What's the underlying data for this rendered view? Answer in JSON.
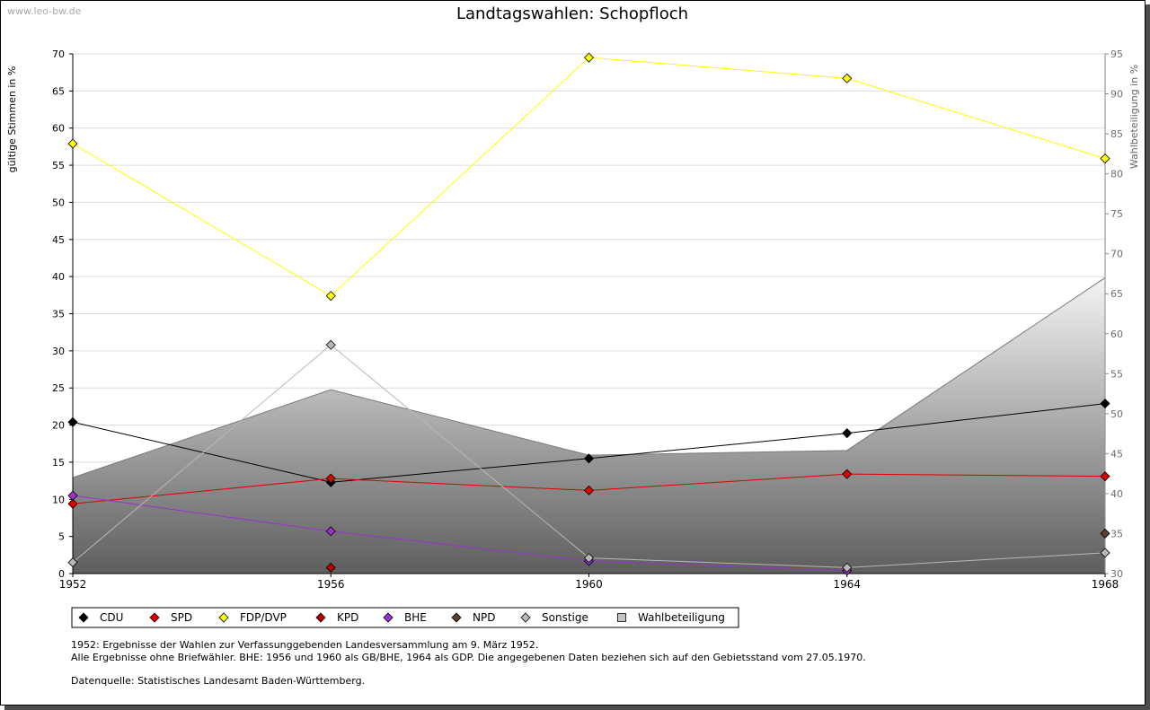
{
  "watermark": "www.leo-bw.de",
  "chart_data": {
    "type": "line",
    "title": "Landtagswahlen: Schopfloch",
    "ylabel": "gültige Stimmen in %",
    "y2label": "Wahlbeteiligung in %",
    "categories": [
      "1952",
      "1956",
      "1960",
      "1964",
      "1968"
    ],
    "ylim": [
      0,
      70
    ],
    "y2lim": [
      30,
      95
    ],
    "yticks": [
      0,
      5,
      10,
      15,
      20,
      25,
      30,
      35,
      40,
      45,
      50,
      55,
      60,
      65,
      70
    ],
    "y2ticks": [
      30,
      35,
      40,
      45,
      50,
      55,
      60,
      65,
      70,
      75,
      80,
      85,
      90,
      95
    ],
    "grid": true,
    "legend_position": "bottom-left",
    "marker": "diamond",
    "series": [
      {
        "name": "CDU",
        "color": "#000000",
        "series_type": "line",
        "axis": "left",
        "values": [
          20.4,
          12.3,
          15.5,
          18.9,
          22.9
        ]
      },
      {
        "name": "SPD",
        "color": "#e00000",
        "series_type": "line",
        "axis": "left",
        "values": [
          9.4,
          12.8,
          11.2,
          13.4,
          13.1
        ]
      },
      {
        "name": "FDP/DVP",
        "color": "#ffff00",
        "series_type": "line",
        "axis": "left",
        "values": [
          57.9,
          37.4,
          69.5,
          66.7,
          55.9
        ]
      },
      {
        "name": "KPD",
        "color": "#b40000",
        "series_type": "line",
        "axis": "left",
        "values": [
          null,
          0.8,
          null,
          null,
          null
        ]
      },
      {
        "name": "BHE",
        "color": "#9933cc",
        "series_type": "line",
        "axis": "left",
        "values": [
          10.5,
          5.7,
          1.7,
          0.4,
          null
        ]
      },
      {
        "name": "NPD",
        "color": "#5c4033",
        "series_type": "line",
        "axis": "left",
        "values": [
          null,
          null,
          null,
          null,
          5.4
        ]
      },
      {
        "name": "Sonstige",
        "color": "#b8b8b8",
        "series_type": "line",
        "axis": "left",
        "values": [
          1.5,
          30.8,
          2.1,
          0.8,
          2.8
        ]
      },
      {
        "name": "Wahlbeteiligung",
        "color": "#c4c4c4",
        "series_type": "area",
        "axis": "right",
        "values": [
          42.0,
          53.0,
          44.8,
          45.4,
          67.0
        ]
      }
    ],
    "notes": [
      "1952: Ergebnisse der Wahlen zur Verfassunggebenden Landesversammlung am 9. März 1952.",
      "Alle Ergebnisse ohne Briefwähler. BHE: 1956 und 1960 als GB/BHE, 1964 als GDP. Die angegebenen Daten beziehen sich auf den Gebietsstand vom 27.05.1970."
    ],
    "source": "Datenquelle: Statistisches Landesamt Baden-Württemberg."
  }
}
